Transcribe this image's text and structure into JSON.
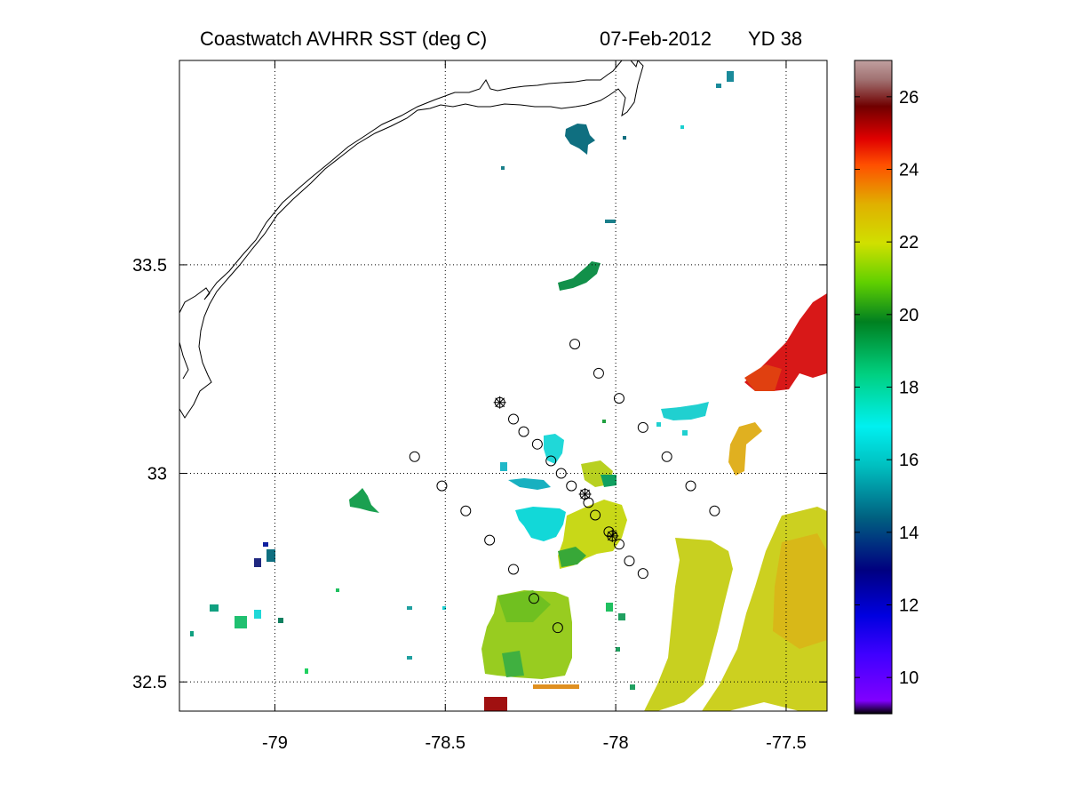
{
  "title": {
    "product": "Coastwatch   AVHRR   SST  (deg C)",
    "date": "07-Feb-2012",
    "yearday": "YD 38"
  },
  "map": {
    "lon_range": [
      -79.28,
      -77.38
    ],
    "lat_range": [
      32.43,
      33.99
    ],
    "x_ticks": [
      "-79",
      "-78.5",
      "-78",
      "-77.5"
    ],
    "x_tick_values": [
      -79,
      -78.5,
      -78,
      -77.5
    ],
    "y_ticks": [
      "33.5",
      "33",
      "32.5"
    ],
    "y_tick_values": [
      33.5,
      33,
      32.5
    ],
    "grid": "dotted"
  },
  "colorbar": {
    "range": [
      9,
      27
    ],
    "ticks": [
      "26",
      "24",
      "22",
      "20",
      "18",
      "16",
      "14",
      "12",
      "10"
    ],
    "tick_values": [
      26,
      24,
      22,
      20,
      18,
      16,
      14,
      12,
      10
    ],
    "colormap": [
      "#000000",
      "#8000ff",
      "#0000ff",
      "#000080",
      "#008080",
      "#00ffff",
      "#00e080",
      "#008000",
      "#80ff00",
      "#e0e000",
      "#ff8000",
      "#ff0000",
      "#800000",
      "#804040",
      "#c0a0a0"
    ]
  },
  "chart_data": {
    "type": "scatter",
    "stations_circle": [
      [
        -78.12,
        33.31
      ],
      [
        -78.05,
        33.24
      ],
      [
        -77.99,
        33.18
      ],
      [
        -77.92,
        33.11
      ],
      [
        -77.85,
        33.04
      ],
      [
        -77.78,
        32.97
      ],
      [
        -77.71,
        32.91
      ],
      [
        -78.3,
        33.13
      ],
      [
        -78.27,
        33.1
      ],
      [
        -78.23,
        33.07
      ],
      [
        -78.19,
        33.03
      ],
      [
        -78.16,
        33.0
      ],
      [
        -78.13,
        32.97
      ],
      [
        -78.08,
        32.93
      ],
      [
        -78.06,
        32.9
      ],
      [
        -78.02,
        32.86
      ],
      [
        -77.99,
        32.83
      ],
      [
        -77.96,
        32.79
      ],
      [
        -77.92,
        32.76
      ],
      [
        -78.59,
        33.04
      ],
      [
        -78.51,
        32.97
      ],
      [
        -78.44,
        32.91
      ],
      [
        -78.37,
        32.84
      ],
      [
        -78.3,
        32.77
      ],
      [
        -78.24,
        32.7
      ],
      [
        -78.17,
        32.63
      ]
    ],
    "stations_star": [
      [
        -78.34,
        33.17
      ],
      [
        -78.09,
        32.95
      ],
      [
        -78.01,
        32.85
      ]
    ]
  }
}
